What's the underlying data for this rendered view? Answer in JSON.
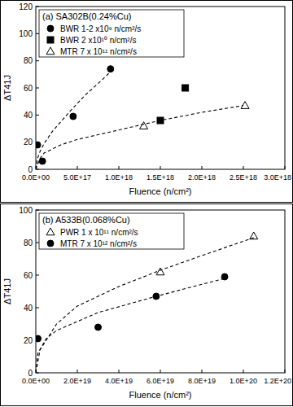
{
  "chart_data": [
    {
      "type": "scatter",
      "title": "(a) SA302B(0.24%Cu)",
      "x_label": "Fluence (n/cm²)",
      "y_label": "ΔT41J",
      "xlim": [
        0,
        3e+18
      ],
      "xticks": [
        {
          "value": 0,
          "label": "0.0E+00"
        },
        {
          "value": 5e+17,
          "label": "5.0E+17"
        },
        {
          "value": 1e+18,
          "label": "1.0E+18"
        },
        {
          "value": 1.5e+18,
          "label": "1.5E+18"
        },
        {
          "value": 2e+18,
          "label": "2.0E+18"
        },
        {
          "value": 2.5e+18,
          "label": "2.5E+18"
        },
        {
          "value": 3e+18,
          "label": "3.0E+18"
        }
      ],
      "ylim": [
        0,
        120
      ],
      "yticks": [
        0,
        20,
        40,
        60,
        80,
        100,
        120
      ],
      "legend": "upper left",
      "series": [
        {
          "name": "BWR 1-2 x10⁹  n/cm²/s",
          "color": "#000000",
          "marker": "circle",
          "x": [
            2e+16,
            8e+16,
            4.5e+17,
            9e+17
          ],
          "values": [
            18,
            6,
            39,
            74
          ]
        },
        {
          "name": "BWR 2 x10¹⁰ n/cm²/s",
          "color": "#000000",
          "marker": "square",
          "x": [
            1.5e+18,
            1.8e+18
          ],
          "values": [
            36,
            60
          ]
        },
        {
          "name": "MTR   7 x 10¹¹ n/cm²/s",
          "color": "#000000",
          "marker": "triangle-open",
          "x": [
            1.3e+18,
            2.52e+18
          ],
          "values": [
            32,
            47
          ]
        },
        {
          "type": "line",
          "line_style": "dashed",
          "color": "#000000",
          "x": [
            0,
            2e+16,
            5e+16,
            1e+17,
            2e+17,
            4e+17,
            6e+17,
            8e+17,
            9e+17
          ],
          "values": [
            0,
            8,
            13,
            19,
            28,
            42,
            55,
            66,
            72
          ]
        },
        {
          "type": "line",
          "line_style": "dashed",
          "color": "#000000",
          "x": [
            0,
            5e+16,
            1e+17,
            3e+17,
            5e+17,
            1e+18,
            1.5e+18,
            2e+18,
            2.5e+18
          ],
          "values": [
            0,
            8,
            12,
            18,
            22,
            29,
            36,
            42,
            47
          ]
        }
      ]
    },
    {
      "type": "scatter",
      "title": "(b) A533B(0.068%Cu)",
      "x_label": "Fluence (n/cm²)",
      "y_label": "ΔT41J",
      "xlim": [
        0,
        1.2e+20
      ],
      "xticks": [
        {
          "value": 0,
          "label": "0.0E+00"
        },
        {
          "value": 2e+19,
          "label": "2.0E+19"
        },
        {
          "value": 4e+19,
          "label": "4.0E+19"
        },
        {
          "value": 6e+19,
          "label": "6.0E+19"
        },
        {
          "value": 8e+19,
          "label": "8.0E+19"
        },
        {
          "value": 1e+20,
          "label": "1.0E+20"
        },
        {
          "value": 1.2e+20,
          "label": "1.2E+20"
        }
      ],
      "ylim": [
        0,
        100
      ],
      "yticks": [
        0,
        20,
        40,
        60,
        80,
        100
      ],
      "legend": "upper left",
      "series": [
        {
          "name": "PWR  1 x 10¹¹ n/cm²/s",
          "color": "#000000",
          "marker": "triangle-open",
          "x": [
            6e+19,
            1.05e+20
          ],
          "values": [
            62,
            84
          ]
        },
        {
          "name": "MTR  7 x 10¹² n/cm²/s",
          "color": "#000000",
          "marker": "circle",
          "x": [
            1e+18,
            3e+19,
            5.8e+19,
            9.1e+19
          ],
          "values": [
            21,
            28,
            47,
            59
          ]
        },
        {
          "type": "line",
          "line_style": "dashed",
          "color": "#000000",
          "x": [
            0,
            2e+18,
            1e+19,
            2e+19,
            4e+19,
            6e+19,
            8e+19,
            1.05e+20
          ],
          "values": [
            0,
            14,
            30,
            41,
            53,
            63,
            72,
            83
          ]
        },
        {
          "type": "line",
          "line_style": "dashed",
          "color": "#000000",
          "x": [
            0,
            1e+18,
            5e+18,
            1e+19,
            3e+19,
            5.8e+19,
            9.1e+19
          ],
          "values": [
            0,
            12,
            21,
            26,
            37,
            47,
            58
          ]
        }
      ]
    }
  ]
}
